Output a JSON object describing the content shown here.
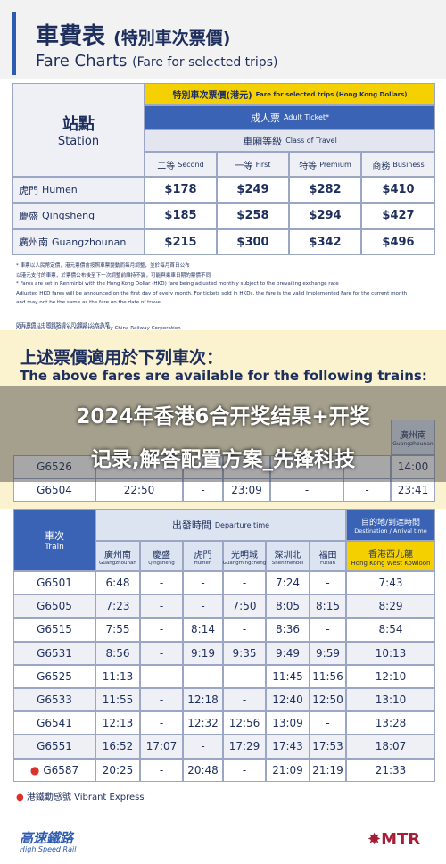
{
  "header": {
    "title_zh": "車費表",
    "title_zh_sub": "(特別車次票價)",
    "title_en": "Fare Charts",
    "title_en_sub": "(Fare for selected trips)"
  },
  "fare_table": {
    "station_zh": "站點",
    "station_en": "Station",
    "fare_zh": "特別車次票價(港元)",
    "fare_en": "Fare for selected trips (Hong Kong Dollars)",
    "ticket_zh": "成人票",
    "ticket_en": "Adult Ticket*",
    "class_zh": "車廂等級",
    "class_en": "Class of Travel",
    "classes": [
      {
        "zh": "二等",
        "en": "Second"
      },
      {
        "zh": "一等",
        "en": "First"
      },
      {
        "zh": "特等",
        "en": "Premium"
      },
      {
        "zh": "商務",
        "en": "Business"
      }
    ],
    "rows": [
      {
        "zh": "虎門",
        "en": "Humen",
        "fares": [
          "$178",
          "$249",
          "$282",
          "$410"
        ]
      },
      {
        "zh": "慶盛",
        "en": "Qingsheng",
        "fares": [
          "$185",
          "$258",
          "$294",
          "$427"
        ]
      },
      {
        "zh": "廣州南",
        "en": "Guangzhounan",
        "fares": [
          "$215",
          "$300",
          "$342",
          "$496"
        ]
      }
    ]
  },
  "notes": [
    "* 車票以人民幣定價，港元票價會按照車票變動而每月調整，並於每月首日公布",
    "以港元支付的車票，於票價公布後至下一次調整前維持不變，可能與乘車日期的票價不同",
    "* Fares are set in Renminbi with the Hong Kong Dollar (HKD) fare being adjusted monthly subject to the prevailing exchange rate",
    "Adjusted HKD fares will be announced on the first day of every month. For tickets sold in HKDs, the fare is the valid Implemented Fare for the current month",
    "and may not be the same as the fare on the date of travel",
    "所有票價以中國鐵路總公司(鐵總)公布為準",
    "All fares are subject to confirmation by China Railway Corporation"
  ],
  "section": {
    "title_zh": "上述票價適用於下列車次：",
    "title_en": "The above fares are available for the following trains:"
  },
  "overlay": [
    "2024年香港6合开奖结果+开奖",
    "记录,解答配置方案_先锋科技"
  ],
  "partial_table": {
    "header": {
      "zh": "廣州南",
      "en": "Guangzhounan"
    },
    "rows": [
      {
        "train": "G6526",
        "times": [
          "14:00"
        ]
      },
      {
        "train": "G6504",
        "times": [
          "22:50",
          "-",
          "23:09",
          "-",
          "-",
          "23:41"
        ]
      }
    ]
  },
  "timetable": {
    "train_zh": "車次",
    "train_en": "Train",
    "dep_zh": "出發時間",
    "dep_en": "Departure time",
    "dest_zh": "目的地/到達時間",
    "dest_en": "Destination / Arrival time",
    "stations": [
      {
        "zh": "廣州南",
        "en": "Guangzhounan"
      },
      {
        "zh": "慶盛",
        "en": "Qingsheng"
      },
      {
        "zh": "虎門",
        "en": "Humen"
      },
      {
        "zh": "光明城",
        "en": "Guangmingcheng"
      },
      {
        "zh": "深圳北",
        "en": "Shenzhenbei"
      },
      {
        "zh": "福田",
        "en": "Futian"
      },
      {
        "zh": "香港西九龍",
        "en": "Hong Kong West Kowloon"
      }
    ],
    "rows": [
      {
        "train": "G6501",
        "times": [
          "6:48",
          "-",
          "-",
          "-",
          "7:24",
          "-",
          "7:43"
        ]
      },
      {
        "train": "G6505",
        "times": [
          "7:23",
          "-",
          "-",
          "7:50",
          "8:05",
          "8:15",
          "8:29"
        ]
      },
      {
        "train": "G6515",
        "times": [
          "7:55",
          "-",
          "8:14",
          "-",
          "8:36",
          "-",
          "8:54"
        ]
      },
      {
        "train": "G6531",
        "times": [
          "8:56",
          "-",
          "9:19",
          "9:35",
          "9:49",
          "9:59",
          "10:13"
        ]
      },
      {
        "train": "G6525",
        "times": [
          "11:13",
          "-",
          "-",
          "-",
          "11:45",
          "11:56",
          "12:10"
        ]
      },
      {
        "train": "G6533",
        "times": [
          "11:55",
          "-",
          "12:18",
          "-",
          "12:40",
          "12:50",
          "13:10"
        ]
      },
      {
        "train": "G6541",
        "times": [
          "12:13",
          "-",
          "12:32",
          "12:56",
          "13:09",
          "-",
          "13:28"
        ]
      },
      {
        "train": "G6551",
        "times": [
          "16:52",
          "17:07",
          "-",
          "17:29",
          "17:43",
          "17:53",
          "18:07"
        ]
      },
      {
        "train": "G6587",
        "vibrant": true,
        "times": [
          "20:25",
          "-",
          "20:48",
          "-",
          "21:09",
          "21:19",
          "21:33"
        ]
      }
    ]
  },
  "legend": "港鐵動感號 Vibrant Express",
  "footer": {
    "left_zh": "高速鐵路",
    "left_en": "High Speed Rail",
    "right": "MTR"
  }
}
